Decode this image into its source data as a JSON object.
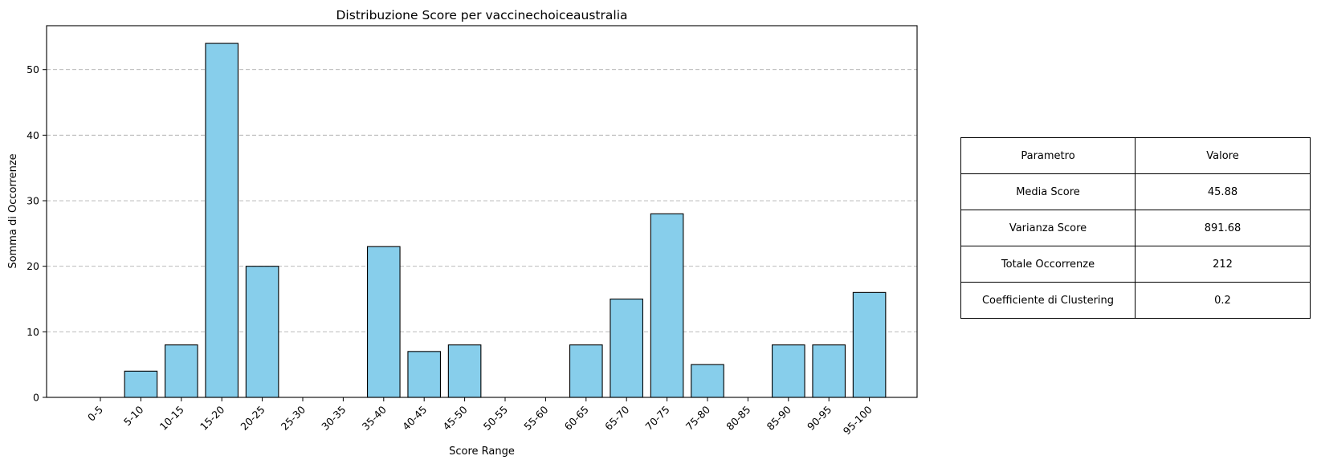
{
  "chart_data": {
    "type": "bar",
    "title": "Distribuzione Score per vaccinechoiceaustralia",
    "xlabel": "Score Range",
    "ylabel": "Somma di Occorrenze",
    "categories": [
      "0-5",
      "5-10",
      "10-15",
      "15-20",
      "20-25",
      "25-30",
      "30-35",
      "35-40",
      "40-45",
      "45-50",
      "50-55",
      "55-60",
      "60-65",
      "65-70",
      "70-75",
      "75-80",
      "80-85",
      "85-90",
      "90-95",
      "95-100"
    ],
    "values": [
      0,
      4,
      8,
      54,
      20,
      0,
      0,
      23,
      7,
      8,
      0,
      0,
      8,
      15,
      28,
      5,
      0,
      8,
      8,
      16
    ],
    "ylim": [
      0,
      56.7
    ],
    "yticks": [
      0,
      10,
      20,
      30,
      40,
      50
    ],
    "grid": "y-dashed",
    "bar_color": "#87ceeb",
    "edge_color": "#000000",
    "grid_color": "#b0b0b0"
  },
  "table": {
    "header": [
      "Parametro",
      "Valore"
    ],
    "rows": [
      [
        "Media Score",
        "45.88"
      ],
      [
        "Varianza Score",
        "891.68"
      ],
      [
        "Totale Occorrenze",
        "212"
      ],
      [
        "Coefficiente di Clustering",
        "0.2"
      ]
    ]
  }
}
